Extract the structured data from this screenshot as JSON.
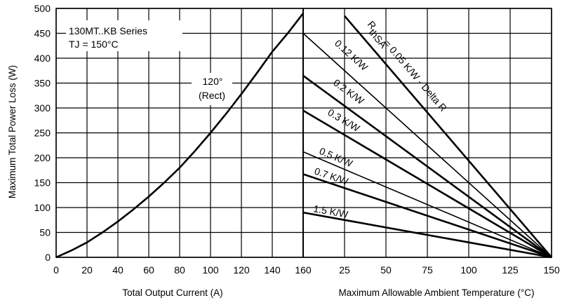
{
  "chart_data": {
    "type": "line",
    "ylabel": "Maximum Total Power Loss (W)",
    "ylim": [
      0,
      500
    ],
    "yticks": [
      "0",
      "50",
      "100",
      "150",
      "200",
      "250",
      "300",
      "350",
      "400",
      "450",
      "500"
    ],
    "left_panel": {
      "xlabel": "Total Output Current (A)",
      "xlim": [
        0,
        160
      ],
      "xticks": [
        "0",
        "20",
        "40",
        "60",
        "80",
        "100",
        "120",
        "140",
        "160"
      ],
      "series": [
        {
          "name": "120° (Rect)",
          "x": [
            0,
            10,
            20,
            30,
            40,
            50,
            60,
            70,
            80,
            90,
            100,
            110,
            120,
            130,
            140,
            150,
            160
          ],
          "y": [
            0,
            14,
            30,
            50,
            72,
            96,
            122,
            150,
            180,
            214,
            250,
            288,
            328,
            370,
            413,
            450,
            490
          ]
        }
      ]
    },
    "right_panel": {
      "xlabel": "Maximum Allowable Ambient Temperature (°C)",
      "xlim": [
        0,
        150
      ],
      "xticks": [
        "",
        "25",
        "50",
        "75",
        "100",
        "125",
        "150"
      ],
      "series": [
        {
          "name": "0.05 K/W - Delta R",
          "x": [
            25,
            150
          ],
          "y": [
            485,
            0
          ]
        },
        {
          "name": "0.12 K/W",
          "x": [
            0,
            150
          ],
          "y": [
            450,
            0
          ]
        },
        {
          "name": "0.2 K/W",
          "x": [
            0,
            150
          ],
          "y": [
            365,
            0
          ]
        },
        {
          "name": "0.3 K/W",
          "x": [
            0,
            150
          ],
          "y": [
            295,
            0
          ]
        },
        {
          "name": "0.5 K/W",
          "x": [
            0,
            150
          ],
          "y": [
            212,
            0
          ]
        },
        {
          "name": "0.7 K/W",
          "x": [
            0,
            150
          ],
          "y": [
            167,
            0
          ]
        },
        {
          "name": "1.5 K/W",
          "x": [
            0,
            150
          ],
          "y": [
            90,
            0
          ]
        }
      ]
    },
    "annotations": {
      "series_title": "130MT..KB Series",
      "tj_label": "TJ = 150°C",
      "curve_label_1": "120°",
      "curve_label_2": "(Rect)",
      "rthsa_prefix": "R",
      "rthsa_sub": "thSA"
    }
  }
}
